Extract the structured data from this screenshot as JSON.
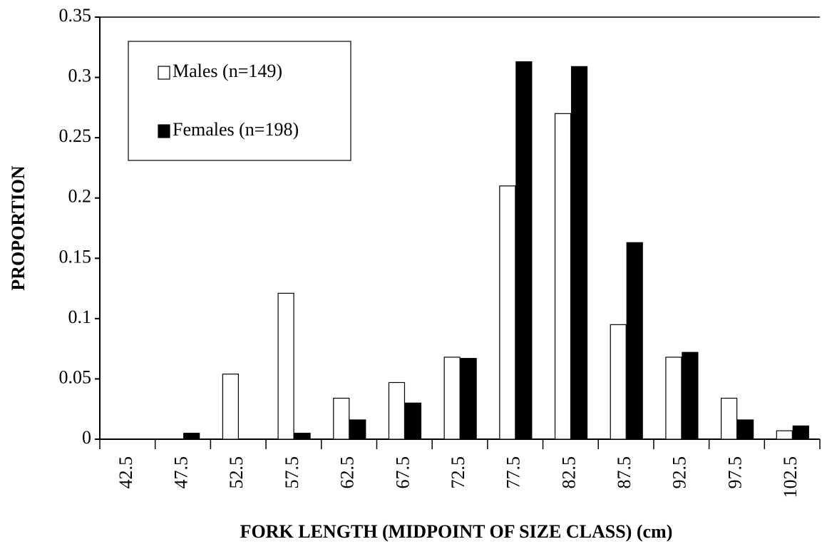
{
  "chart_data": {
    "type": "bar",
    "xlabel": "FORK LENGTH (MIDPOINT OF SIZE CLASS) (cm)",
    "ylabel": "PROPORTION",
    "categories": [
      "42.5",
      "47.5",
      "52.5",
      "57.5",
      "62.5",
      "67.5",
      "72.5",
      "77.5",
      "82.5",
      "87.5",
      "92.5",
      "97.5",
      "102.5"
    ],
    "series": [
      {
        "name": "Males (n=149)",
        "color": "#ffffff",
        "values": [
          0,
          0,
          0.054,
          0.121,
          0.034,
          0.047,
          0.068,
          0.21,
          0.27,
          0.095,
          0.068,
          0.034,
          0.007
        ]
      },
      {
        "name": "Females (n=198)",
        "color": "#000000",
        "values": [
          0,
          0.005,
          0,
          0.005,
          0.016,
          0.03,
          0.067,
          0.313,
          0.309,
          0.163,
          0.072,
          0.016,
          0.011
        ]
      }
    ],
    "ylim": [
      0,
      0.35
    ],
    "yticks": [
      0,
      0.05,
      0.1,
      0.15,
      0.2,
      0.25,
      0.3,
      0.35
    ],
    "legend": "upper left"
  }
}
